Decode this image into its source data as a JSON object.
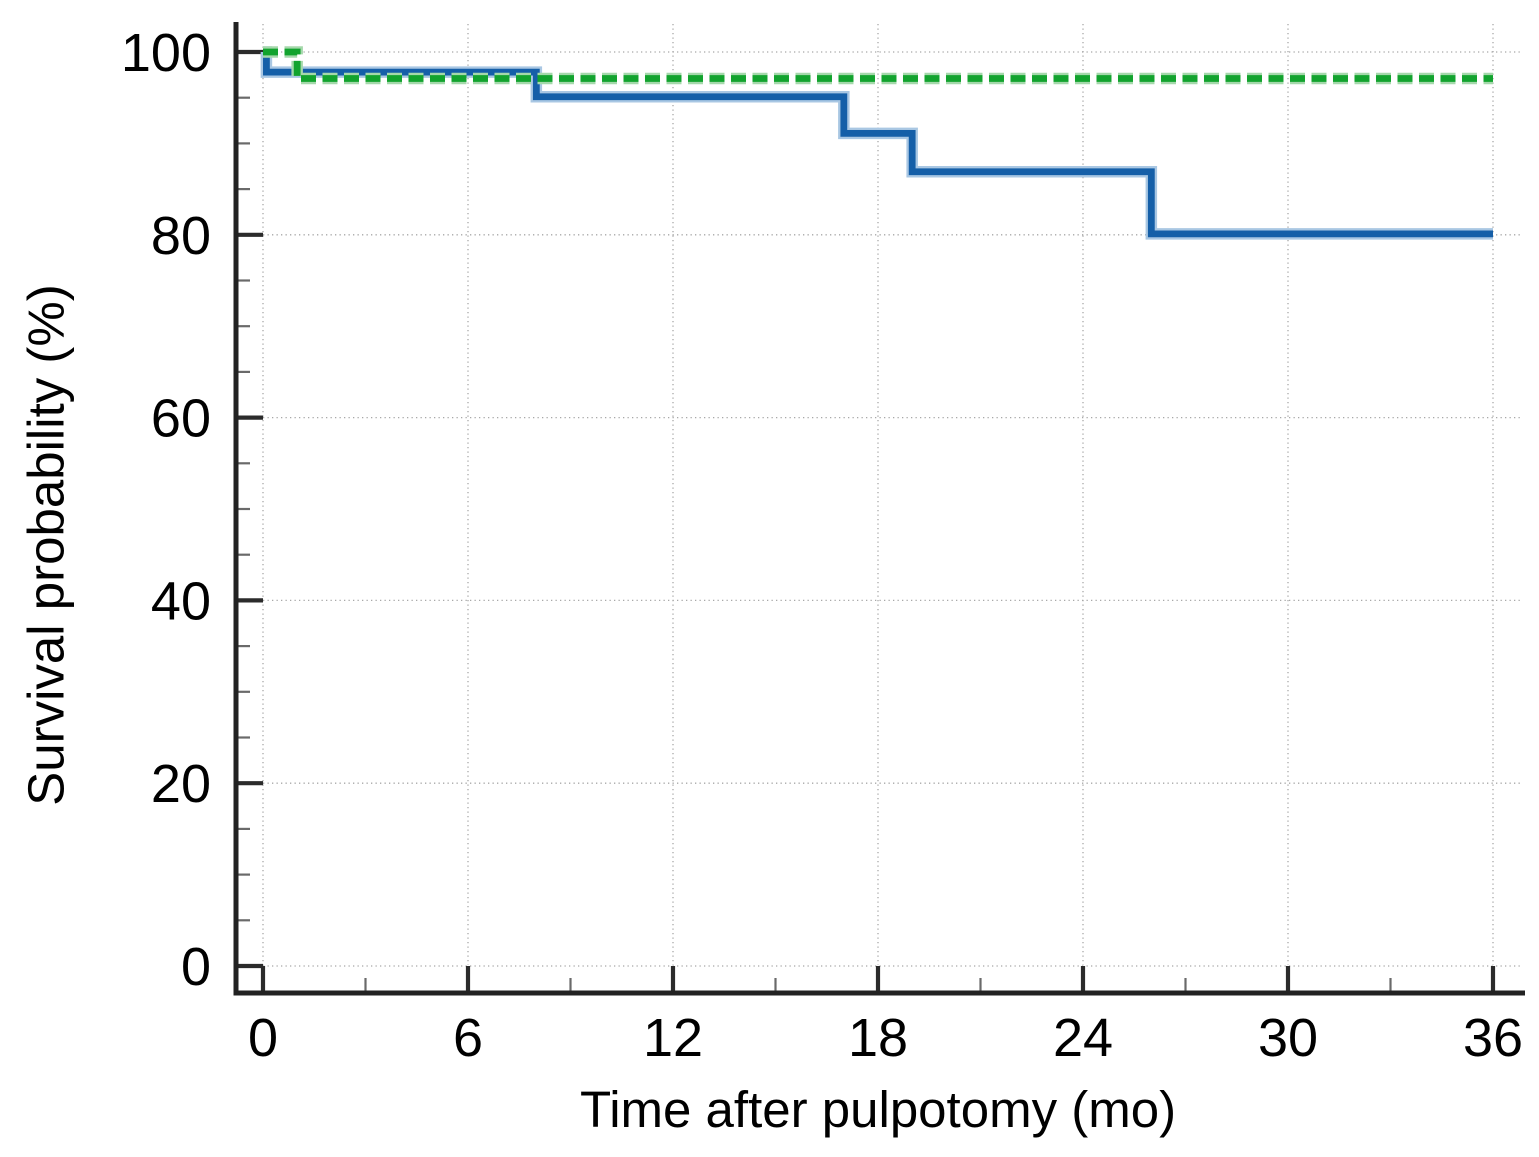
{
  "figure": {
    "background": "#ffffff"
  },
  "chart_data": {
    "type": "line",
    "subtype": "kaplan-meier-step",
    "title": "",
    "xlabel": "Time after pulpotomy (mo)",
    "ylabel": "Survival probability (%)",
    "xlim": [
      0,
      36
    ],
    "ylim": [
      0,
      100
    ],
    "x_ticks": [
      0,
      6,
      12,
      18,
      24,
      30,
      36
    ],
    "x_minor_ticks": [
      3,
      9,
      15,
      21,
      27,
      33
    ],
    "y_ticks": [
      0,
      20,
      40,
      60,
      80,
      100
    ],
    "y_minor_ticks": [
      5,
      10,
      15,
      25,
      30,
      35,
      45,
      50,
      55,
      65,
      70,
      75,
      85,
      90,
      95
    ],
    "grid": "dotted",
    "legend": "none",
    "series": [
      {
        "name": "solid blue curve",
        "line_style": "solid",
        "color": "#155fa8",
        "halo_color": "#a9c7e3",
        "points": [
          [
            0,
            100
          ],
          [
            0.1,
            97.8
          ],
          [
            8,
            95.1
          ],
          [
            17,
            91.1
          ],
          [
            19,
            86.9
          ],
          [
            26,
            80.1
          ],
          [
            36,
            80.1
          ]
        ]
      },
      {
        "name": "dashed green curve",
        "line_style": "dashed",
        "color": "#12a32e",
        "halo_color": "#a5d8ab",
        "points": [
          [
            0,
            100
          ],
          [
            1,
            97.1
          ],
          [
            36,
            97.1
          ]
        ]
      }
    ],
    "axis_color": "#222222",
    "major_tick_color": "#2b2b2b",
    "minor_tick_color": "#6a6a6a",
    "grid_color": "#a8a8a8",
    "text_color": "#000000"
  }
}
